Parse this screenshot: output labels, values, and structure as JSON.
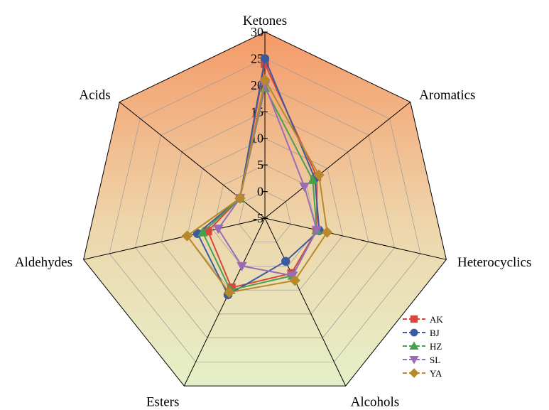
{
  "chart_data": {
    "type": "radar",
    "axes": [
      "Ketones",
      "Aromatics",
      "Heterocyclics",
      "Alcohols",
      "Esters",
      "Aldehydes",
      "Acids"
    ],
    "rlim": [
      -5,
      30
    ],
    "ticks": [
      -5,
      0,
      5,
      10,
      15,
      20,
      25,
      30
    ],
    "tick_labels": [
      "-5",
      "0",
      "5",
      "10",
      "15",
      "20",
      "25",
      "30"
    ],
    "grid": true,
    "legend_position": "bottom-right",
    "series": [
      {
        "name": "AK",
        "color": "#d9463c",
        "marker": "square",
        "values": [
          24,
          7.5,
          5,
          6.5,
          9.5,
          6,
          1
        ]
      },
      {
        "name": "BJ",
        "color": "#3c5aa0",
        "marker": "circle",
        "values": [
          25,
          7,
          5.5,
          4,
          11,
          8,
          1
        ]
      },
      {
        "name": "HZ",
        "color": "#4aa04e",
        "marker": "triangle-up",
        "values": [
          19.5,
          6.5,
          5,
          7,
          10,
          7,
          1
        ]
      },
      {
        "name": "SL",
        "color": "#9a6cb8",
        "marker": "triangle-down",
        "values": [
          20,
          4.5,
          5,
          7,
          5,
          4,
          1
        ]
      },
      {
        "name": "YA",
        "color": "#b8892a",
        "marker": "diamond",
        "values": [
          21,
          8,
          7,
          8,
          10.5,
          10,
          1
        ]
      }
    ]
  }
}
